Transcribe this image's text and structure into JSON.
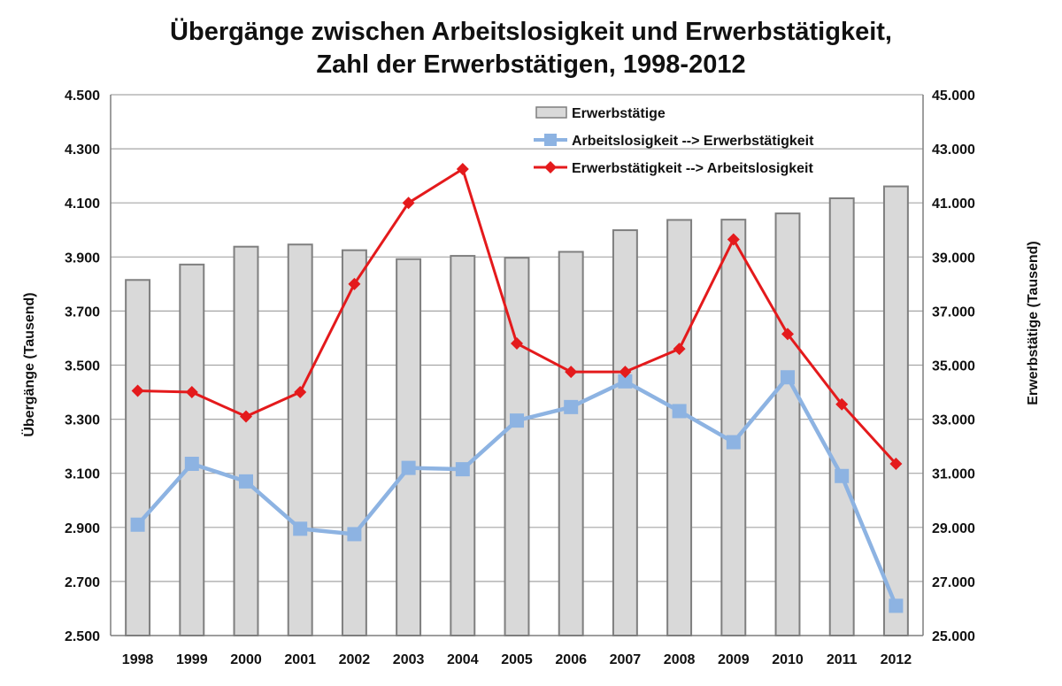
{
  "chart_data": {
    "type": "bar+line",
    "title": "Übergänge zwischen Arbeitslosigkeit und Erwerbstätigkeit,",
    "subtitle": "Zahl der Erwerbstätigen, 1998-2012",
    "categories": [
      "1998",
      "1999",
      "2000",
      "2001",
      "2002",
      "2003",
      "2004",
      "2005",
      "2006",
      "2007",
      "2008",
      "2009",
      "2010",
      "2011",
      "2012"
    ],
    "y_left": {
      "label": "Übergänge (Tausend)",
      "ylim": [
        2500,
        4500
      ],
      "ticks": [
        2500,
        2700,
        2900,
        3100,
        3300,
        3500,
        3700,
        3900,
        4100,
        4300,
        4500
      ],
      "tick_labels": [
        "2.500",
        "2.700",
        "2.900",
        "3.100",
        "3.300",
        "3.500",
        "3.700",
        "3.900",
        "4.100",
        "4.300",
        "4.500"
      ]
    },
    "y_right": {
      "label": "Erwerbstätige (Tausend)",
      "ylim": [
        25000,
        45000
      ],
      "ticks": [
        25000,
        27000,
        29000,
        31000,
        33000,
        35000,
        37000,
        39000,
        41000,
        43000,
        45000
      ],
      "tick_labels": [
        "25.000",
        "27.000",
        "29.000",
        "31.000",
        "33.000",
        "35.000",
        "37.000",
        "39.000",
        "41.000",
        "43.000",
        "45.000"
      ]
    },
    "series": [
      {
        "name": "Erwerbstätige",
        "kind": "bar",
        "axis": "right",
        "color": "#d9d9d9",
        "stroke": "#7f7f7f",
        "values": [
          38150,
          38720,
          39380,
          39460,
          39250,
          38920,
          39040,
          38970,
          39190,
          39990,
          40370,
          40380,
          40610,
          41170,
          41610
        ]
      },
      {
        "name": "Arbeitslosigkeit --> Erwerbstätigkeit",
        "kind": "line",
        "axis": "left",
        "color": "#8db3e2",
        "marker": "square",
        "values": [
          2910,
          3135,
          3070,
          2895,
          2875,
          3120,
          3115,
          3295,
          3345,
          3440,
          3330,
          3215,
          3455,
          3090,
          2610
        ]
      },
      {
        "name": "Erwerbstätigkeit --> Arbeitslosigkeit",
        "kind": "line",
        "axis": "left",
        "color": "#e41a1c",
        "marker": "diamond",
        "values": [
          3405,
          3400,
          3310,
          3400,
          3800,
          4100,
          4225,
          3580,
          3475,
          3475,
          3560,
          3965,
          3615,
          3355,
          3135
        ]
      }
    ],
    "grid": true,
    "legend_position": "top-right-inside"
  }
}
